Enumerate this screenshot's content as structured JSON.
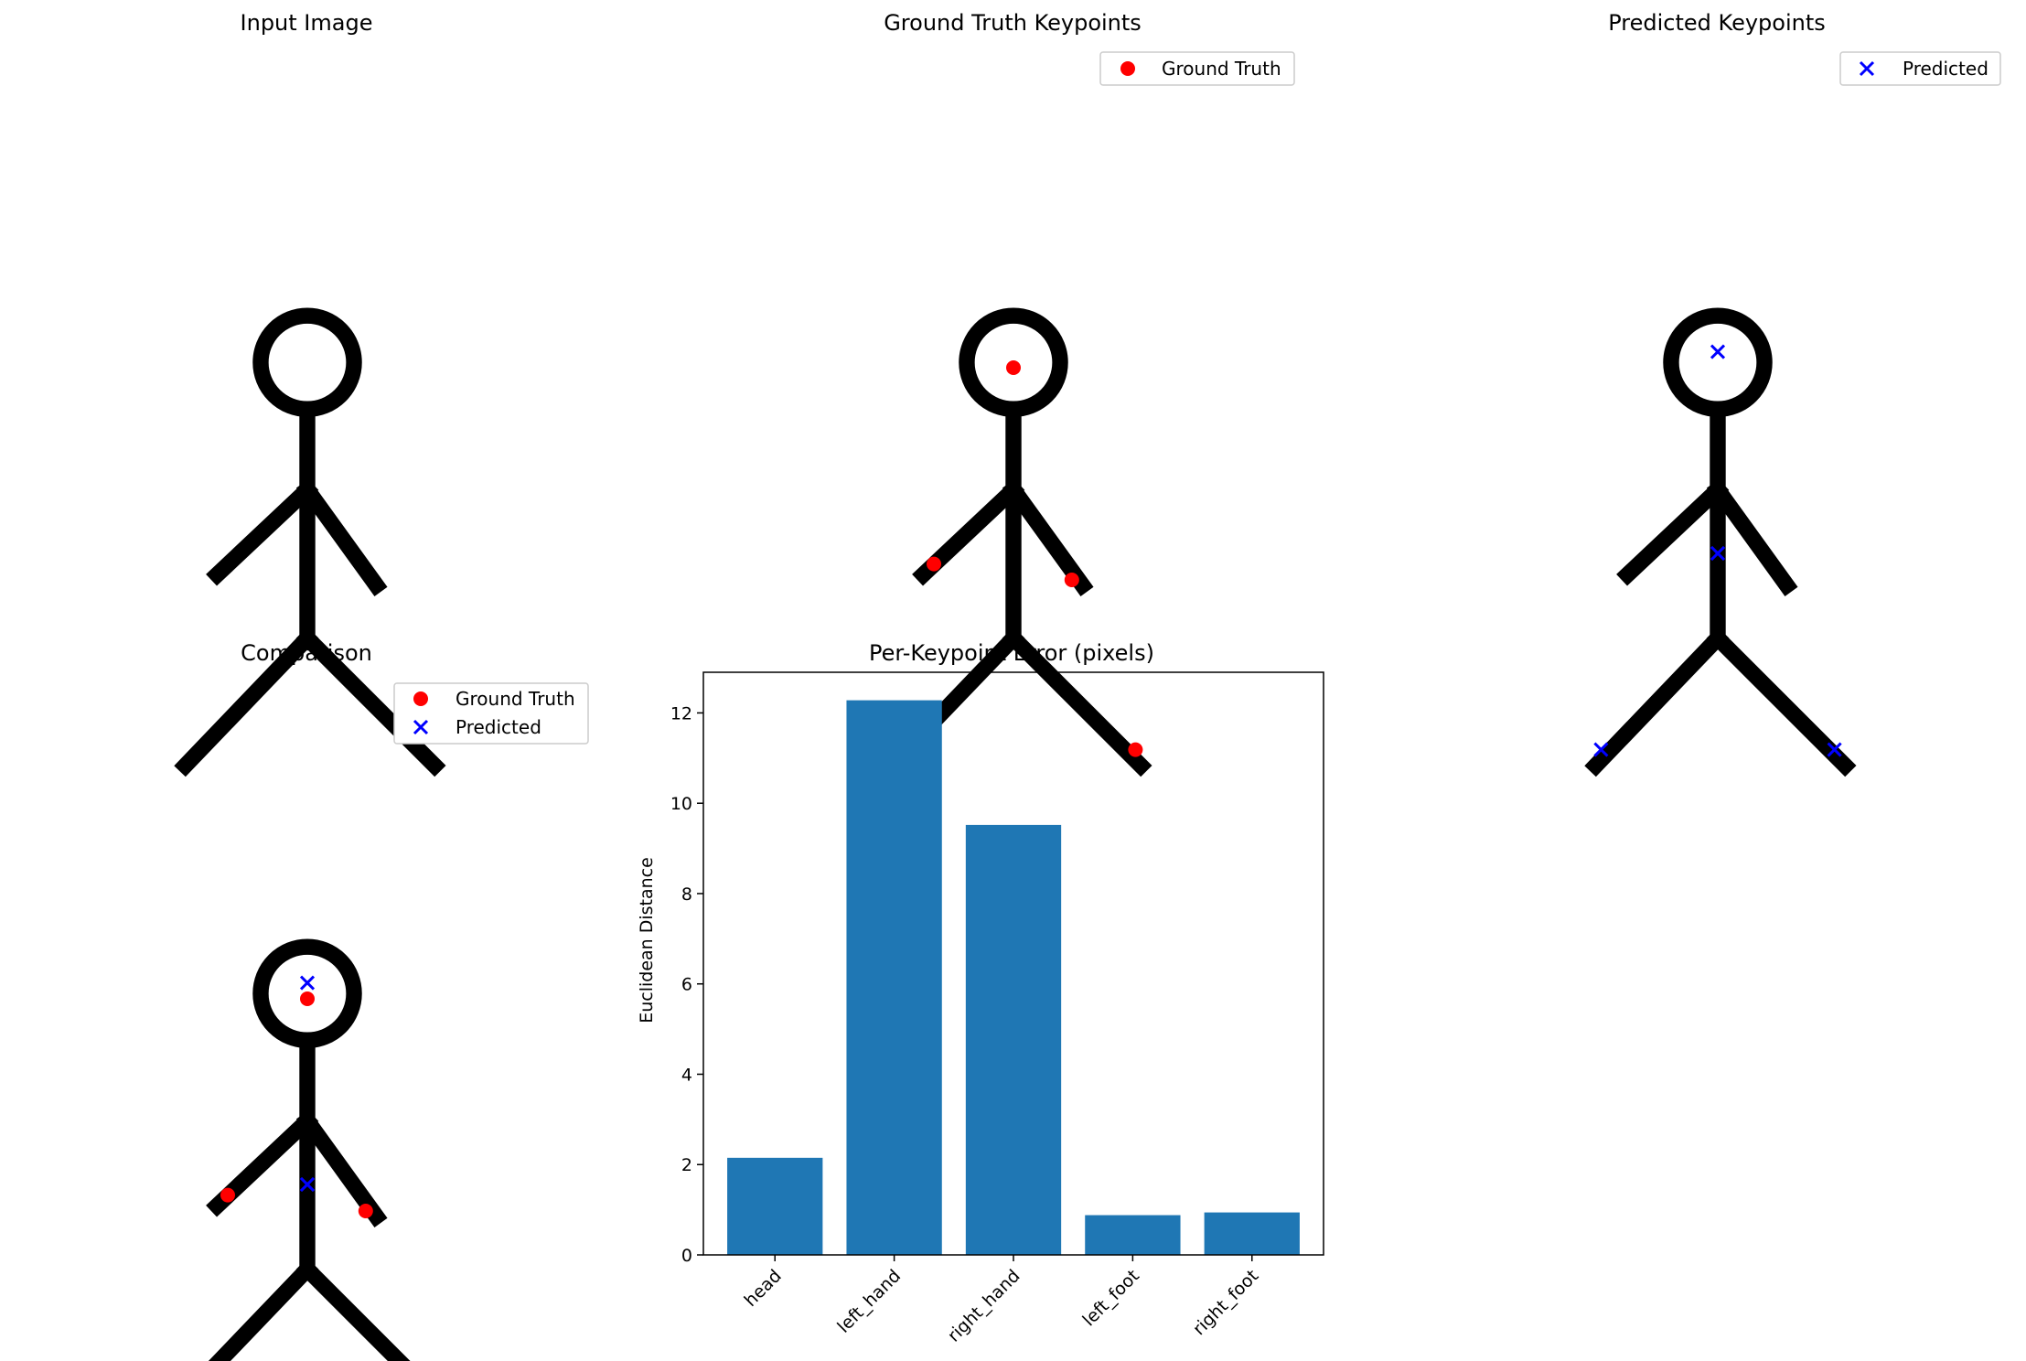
{
  "panels": {
    "input": {
      "title": "Input Image"
    },
    "gt": {
      "title": "Ground Truth Keypoints"
    },
    "pred": {
      "title": "Predicted Keypoints"
    },
    "comparison": {
      "title": "Comparison"
    }
  },
  "legend": {
    "gt_label": "Ground Truth",
    "pred_label": "Predicted"
  },
  "colors": {
    "ground_truth": "#ff0000",
    "predicted": "#0000ff",
    "bar": "#1f77b4",
    "figure": "#000000"
  },
  "keypoints": {
    "names": [
      "head",
      "left_hand",
      "right_hand",
      "left_foot",
      "right_foot"
    ],
    "ground_truth": [
      [
        50,
        20
      ],
      [
        35,
        57
      ],
      [
        61,
        60
      ],
      [
        28,
        92
      ],
      [
        73,
        92
      ]
    ],
    "predicted": [
      [
        50,
        17
      ],
      [
        50,
        55
      ],
      [
        50,
        55
      ],
      [
        28,
        92
      ],
      [
        72,
        92
      ]
    ]
  },
  "chart_data": {
    "type": "bar",
    "title": "Per-Keypoint Error (pixels)",
    "xlabel": "",
    "ylabel": "Euclidean Distance",
    "categories": [
      "head",
      "left_hand",
      "right_hand",
      "left_foot",
      "right_foot"
    ],
    "values": [
      2.15,
      12.28,
      9.52,
      0.88,
      0.94
    ],
    "ylim": [
      0,
      12.9
    ],
    "yticks": [
      0,
      2,
      4,
      6,
      8,
      10,
      12
    ],
    "grid": false,
    "color": "#1f77b4"
  }
}
